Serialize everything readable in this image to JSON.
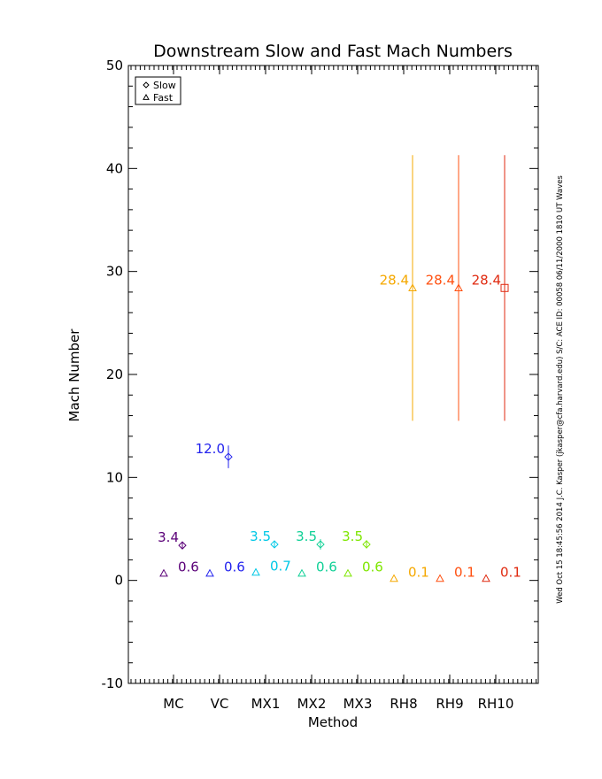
{
  "chart_data": {
    "type": "scatter",
    "title": "Downstream Slow and Fast Mach Numbers",
    "xlabel": "Method",
    "ylabel": "Mach Number",
    "categories": [
      "MC",
      "VC",
      "MX1",
      "MX2",
      "MX3",
      "RH8",
      "RH9",
      "RH10"
    ],
    "ylim": [
      -10,
      50
    ],
    "yticks": [
      -10,
      0,
      10,
      20,
      30,
      40,
      50
    ],
    "grid": false,
    "legend": {
      "placement": "top-left",
      "entries": [
        {
          "symbol": "diamond",
          "label": "Slow"
        },
        {
          "symbol": "triangle",
          "label": "Fast"
        }
      ]
    },
    "series": [
      {
        "name": "Slow",
        "symbol": "diamond",
        "values": [
          3.4,
          12.0,
          3.5,
          3.5,
          3.5,
          28.4,
          28.4,
          28.4
        ],
        "errors": [
          0.3,
          1.1,
          0.3,
          0.5,
          0.4,
          12.9,
          12.9,
          12.9
        ],
        "labels": [
          "3.4",
          "12.0",
          "3.5",
          "3.5",
          "3.5",
          "28.4",
          "28.4",
          "28.4"
        ]
      },
      {
        "name": "Fast",
        "symbol": "triangle",
        "values": [
          0.6,
          0.6,
          0.7,
          0.6,
          0.6,
          0.1,
          0.1,
          0.1
        ],
        "errors": [
          0,
          0,
          0,
          0,
          0,
          0,
          0,
          0
        ],
        "labels": [
          "0.6",
          "0.6",
          "0.7",
          "0.6",
          "0.6",
          "0.1",
          "0.1",
          "0.1"
        ]
      }
    ],
    "colors": [
      "#5a0078",
      "#2222ee",
      "#00c8e6",
      "#10d096",
      "#7ee600",
      "#f5a800",
      "#ff5010",
      "#e02a10"
    ],
    "side_note": "Wed Oct 15 18:45:56 2014  J.C. Kasper (jkasper@cfa.harvard.edu)  S/C: ACE ID: 00058 06/11/2000  1810 UT Waves"
  }
}
